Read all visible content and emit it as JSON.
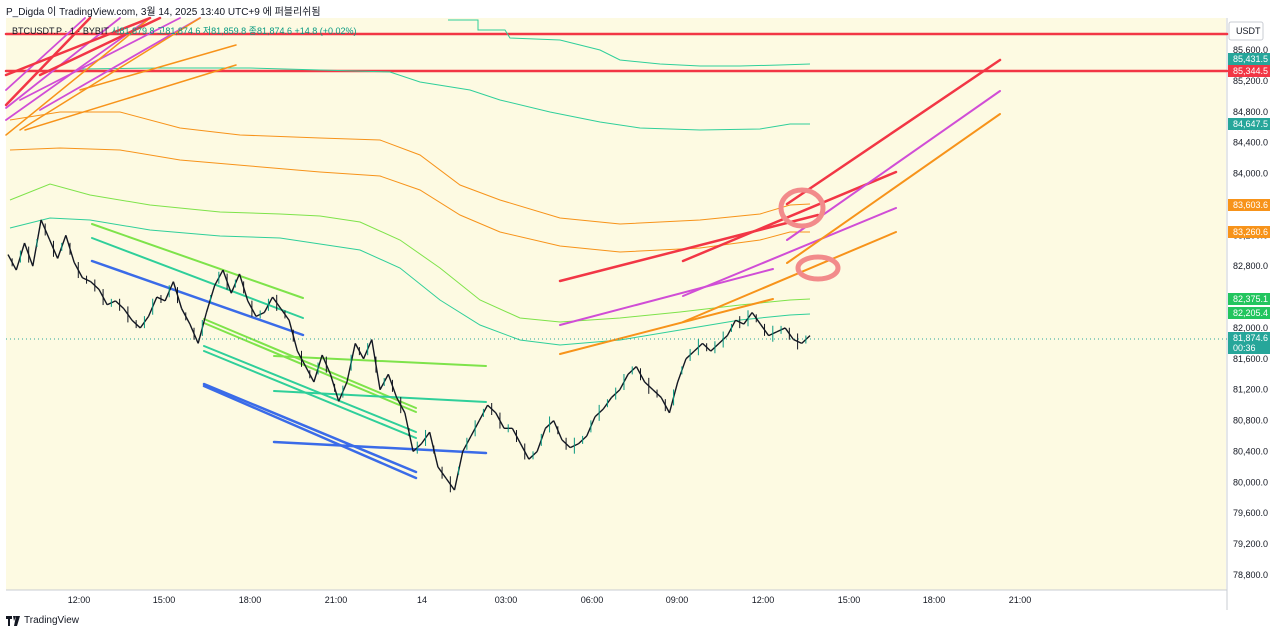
{
  "header": {
    "text": "P_Digda 이 TradingView.com, 3월 14, 2025 13:40 UTC+9 에 퍼블리쉬됨"
  },
  "symbol_bar": {
    "symbol": "BTCUSDT.P · 1 · BYBIT",
    "ohlc": "시81,879.8 고81,874.6 저81,859.8 종81,874.6 +14.8 (+0.02%)"
  },
  "price_axis": {
    "currency": "USDT",
    "ticks": [
      "85,600.0",
      "85,200.0",
      "84,800.0",
      "84,400.0",
      "84,000.0",
      "83,600.0",
      "83,200.0",
      "82,800.0",
      "82,400.0",
      "82,000.0",
      "81,600.0",
      "81,200.0",
      "80,800.0",
      "80,400.0",
      "80,000.0",
      "79,600.0",
      "79,200.0",
      "78,800.0"
    ],
    "tags": [
      {
        "text": "85,431.5",
        "color": "#26a69a"
      },
      {
        "text": "85,344.5",
        "color": "#f23645"
      },
      {
        "text": "84,647.5",
        "color": "#26a69a"
      },
      {
        "text": "83,603.6",
        "color": "#f7931a"
      },
      {
        "text": "83,260.6",
        "color": "#f7931a"
      },
      {
        "text": "82,375.1",
        "color": "#22c55e"
      },
      {
        "text": "82,205.4",
        "color": "#22c55e"
      },
      {
        "text": "81,874.6",
        "color": "#26a69a"
      },
      {
        "text": "00:36",
        "color": "#26a69a"
      }
    ]
  },
  "time_axis": {
    "ticks": [
      "12:00",
      "15:00",
      "18:00",
      "21:00",
      "14",
      "03:00",
      "06:00",
      "09:00",
      "12:00",
      "15:00",
      "18:00",
      "21:00"
    ]
  },
  "footer": {
    "brand": "TradingView"
  },
  "chart_data": {
    "type": "line",
    "title": "BTCUSDT.P · 1 · BYBIT",
    "price_range": [
      78600,
      85900
    ],
    "last_price": 81874.6,
    "series": [
      {
        "values": [
          82950,
          82750,
          83100,
          82800,
          83400,
          83150,
          82900,
          83200,
          82850,
          82650,
          82600,
          82500,
          82300,
          82350,
          82250,
          82100,
          82000,
          82150,
          82400,
          82350,
          82600,
          82250,
          82050,
          81800,
          82200,
          82550,
          82750,
          82450,
          82700,
          82350,
          82150,
          82200,
          82400,
          82250,
          82100,
          81700,
          81500,
          81300,
          81650,
          81400,
          81050,
          81300,
          81800,
          81600,
          81850,
          81200,
          81400,
          81100,
          80900,
          80400,
          80500,
          80650,
          80200,
          80050,
          79900,
          80400,
          80600,
          80800,
          81000,
          80900,
          80700,
          80700,
          80500,
          80300,
          80400,
          80700,
          80800,
          80550,
          80450,
          80500,
          80600,
          80850,
          80950,
          81100,
          81200,
          81400,
          81500,
          81300,
          81200,
          81100,
          80900,
          81300,
          81600,
          81700,
          81800,
          81700,
          81800,
          81900,
          82100,
          82050,
          82200,
          82050,
          81900,
          81950,
          82000,
          81850,
          81800,
          81900
        ]
      }
    ],
    "trendline_colors": {
      "red": "#f23645",
      "orange": "#f7931a",
      "violet": "#d04dd6",
      "green": "#7ee34a",
      "teal": "#2fcf9a",
      "blue": "#3a6be8"
    }
  }
}
